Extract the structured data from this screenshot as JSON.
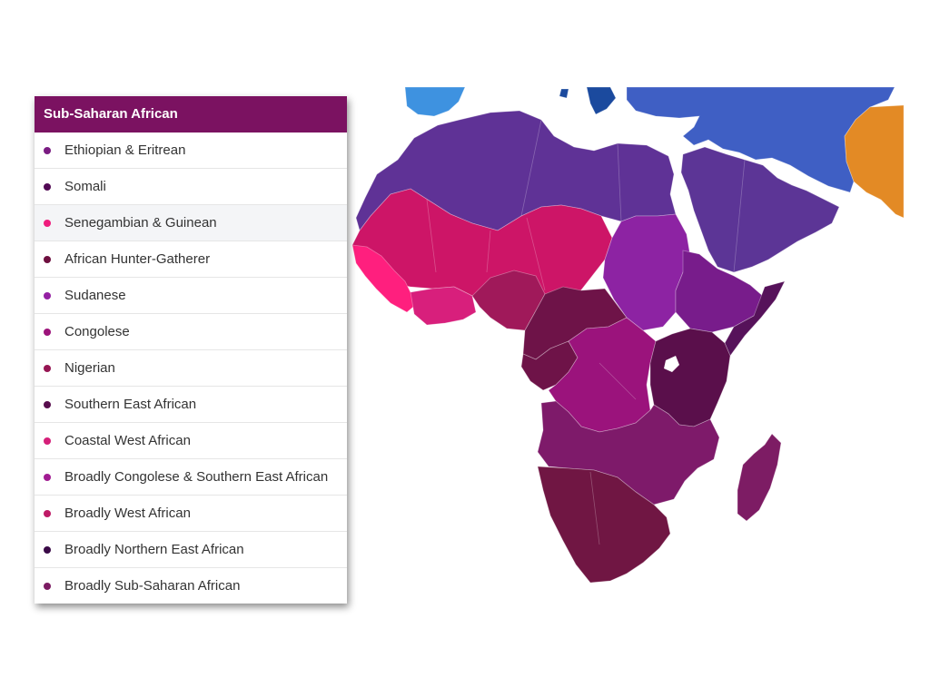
{
  "legend": {
    "header": "Sub-Saharan African",
    "header_color": "#7b1261",
    "hovered_index": 2,
    "items": [
      {
        "label": "Ethiopian & Eritrean",
        "color": "#7a1c82"
      },
      {
        "label": "Somali",
        "color": "#520a54"
      },
      {
        "label": "Senegambian & Guinean",
        "color": "#ef1d7d"
      },
      {
        "label": "African Hunter-Gatherer",
        "color": "#6e0f3f"
      },
      {
        "label": "Sudanese",
        "color": "#9420a3"
      },
      {
        "label": "Congolese",
        "color": "#9c137b"
      },
      {
        "label": "Nigerian",
        "color": "#961653"
      },
      {
        "label": "Southern East African",
        "color": "#580d4d"
      },
      {
        "label": "Coastal West African",
        "color": "#d51f79"
      },
      {
        "label": "Broadly Congolese & Southern East African",
        "color": "#a11c92"
      },
      {
        "label": "Broadly West African",
        "color": "#be1a66"
      },
      {
        "label": "Broadly Northern East African",
        "color": "#3a0a47"
      },
      {
        "label": "Broadly Sub-Saharan African",
        "color": "#7b1b62"
      }
    ]
  },
  "map": {
    "colors": {
      "north_africa": "#5f3296",
      "arabia": "#5c3596",
      "europe_west": "#3e92e0",
      "europe_east": "#3f5fc4",
      "south_asia": "#e38a25",
      "greece": "#1b4a9e",
      "west_africa": "#cd1567",
      "senegambia": "#ff1f7e",
      "coastal_west": "#d81f7c",
      "nigeria": "#a0195a",
      "sudan": "#8d23a3",
      "ethiopia": "#781c8b",
      "somalia": "#56125a",
      "central": "#6e1348",
      "congo": "#9b137c",
      "east": "#5a0f4b",
      "southern_central": "#7e1a6a",
      "southern": "#701643",
      "madagascar": "#7d1c64"
    }
  }
}
